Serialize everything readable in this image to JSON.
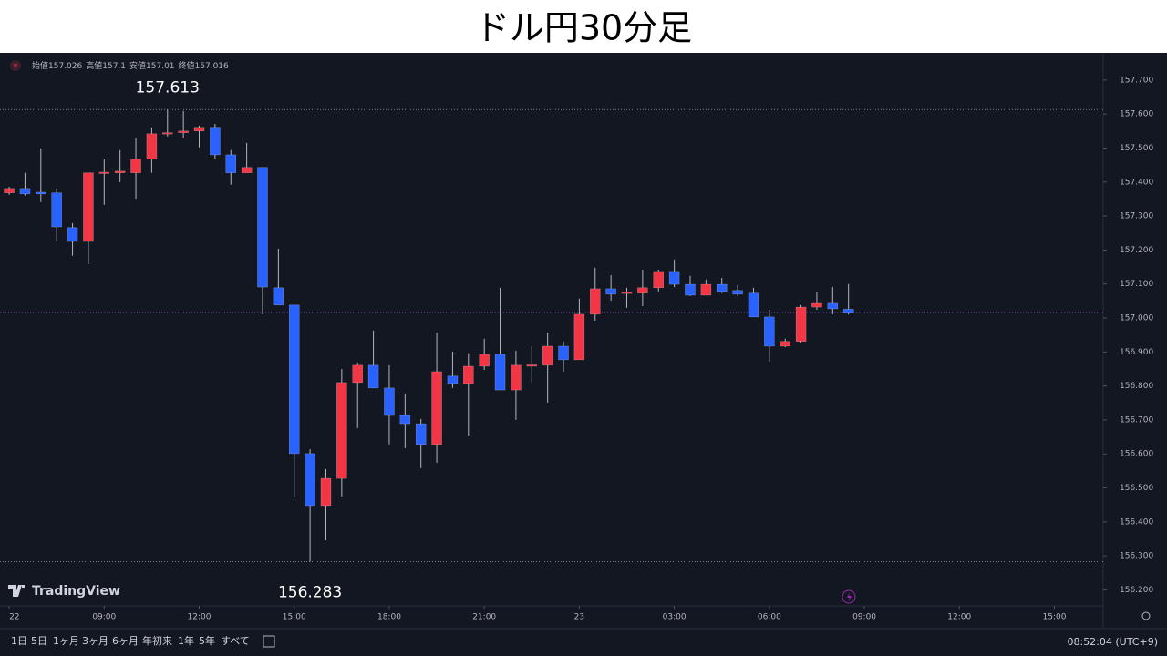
{
  "chart_data": {
    "type": "candlestick",
    "title": "ドル円30分足",
    "ohlc_names": [
      "始値",
      "高値",
      "安値",
      "終値"
    ],
    "open": [
      157.368,
      157.381,
      157.37,
      157.368,
      157.266,
      157.225,
      157.427,
      157.427,
      157.427,
      157.467,
      157.544,
      157.545,
      157.55,
      157.561,
      157.48,
      157.427,
      157.443,
      157.089,
      157.038,
      156.601,
      156.448,
      156.528,
      156.81,
      156.861,
      156.794,
      156.713,
      156.689,
      156.628,
      156.829,
      156.807,
      156.858,
      156.893,
      156.788,
      156.861,
      156.861,
      156.917,
      156.877,
      157.011,
      157.086,
      157.075,
      157.073,
      157.089,
      157.137,
      157.099,
      157.067,
      157.099,
      157.081,
      157.073,
      157.003,
      156.917,
      156.931,
      157.032,
      157.043,
      157.026
    ],
    "high": [
      157.386,
      157.427,
      157.499,
      157.381,
      157.279,
      157.427,
      157.467,
      157.494,
      157.528,
      157.561,
      157.613,
      157.609,
      157.566,
      157.571,
      157.494,
      157.515,
      157.443,
      157.204,
      157.038,
      156.614,
      156.555,
      156.85,
      156.869,
      156.963,
      156.861,
      156.778,
      156.703,
      156.957,
      156.901,
      156.896,
      156.939,
      157.089,
      156.904,
      156.917,
      156.957,
      156.931,
      157.057,
      157.148,
      157.126,
      157.089,
      157.142,
      157.142,
      157.172,
      157.124,
      157.113,
      157.118,
      157.097,
      157.089,
      157.024,
      156.939,
      157.038,
      157.078,
      157.091,
      157.1
    ],
    "low": [
      157.362,
      157.36,
      157.341,
      157.225,
      157.183,
      157.158,
      157.333,
      157.4,
      157.351,
      157.427,
      157.534,
      157.528,
      157.502,
      157.467,
      157.392,
      157.427,
      157.011,
      157.038,
      156.472,
      156.283,
      156.346,
      156.475,
      156.676,
      156.794,
      156.628,
      156.617,
      156.558,
      156.574,
      156.794,
      156.654,
      156.847,
      156.788,
      156.7,
      156.81,
      156.751,
      156.842,
      156.877,
      156.992,
      157.051,
      157.03,
      157.035,
      157.078,
      157.091,
      157.065,
      157.067,
      157.073,
      157.065,
      157.003,
      156.872,
      156.914,
      156.928,
      157.024,
      157.011,
      157.01
    ],
    "close": [
      157.381,
      157.365,
      157.365,
      157.268,
      157.225,
      157.427,
      157.429,
      157.432,
      157.467,
      157.542,
      157.545,
      157.55,
      157.561,
      157.48,
      157.427,
      157.443,
      157.091,
      157.038,
      156.601,
      156.448,
      156.528,
      156.81,
      156.861,
      156.794,
      156.713,
      156.689,
      156.628,
      156.842,
      156.807,
      156.858,
      156.893,
      156.788,
      156.861,
      156.862,
      156.917,
      156.877,
      157.011,
      157.086,
      157.07,
      157.076,
      157.089,
      157.137,
      157.099,
      157.067,
      157.099,
      157.078,
      157.07,
      157.003,
      156.917,
      156.931,
      157.032,
      157.043,
      157.027,
      157.016
    ],
    "up_color": "#f23645",
    "down_color": "#2962ff",
    "ylim": [
      156.153,
      157.78
    ],
    "yticks": [
      {
        "value": 157.7,
        "label": "157.700"
      },
      {
        "value": 157.6,
        "label": "157.600"
      },
      {
        "value": 157.5,
        "label": "157.500"
      },
      {
        "value": 157.4,
        "label": "157.400"
      },
      {
        "value": 157.3,
        "label": "157.300"
      },
      {
        "value": 157.2,
        "label": "157.200"
      },
      {
        "value": 157.1,
        "label": "157.100"
      },
      {
        "value": 157.0,
        "label": "157.000"
      },
      {
        "value": 156.9,
        "label": "156.900"
      },
      {
        "value": 156.8,
        "label": "156.800"
      },
      {
        "value": 156.7,
        "label": "156.700"
      },
      {
        "value": 156.6,
        "label": "156.600"
      },
      {
        "value": 156.5,
        "label": "156.500"
      },
      {
        "value": 156.4,
        "label": "156.400"
      },
      {
        "value": 156.3,
        "label": "156.300"
      },
      {
        "value": 156.2,
        "label": "156.200"
      }
    ],
    "xlim": [
      -0.58,
      69.08
    ],
    "xticks": [
      {
        "value": 0,
        "label": "22"
      },
      {
        "value": 6,
        "label": "09:00"
      },
      {
        "value": 12,
        "label": "12:00"
      },
      {
        "value": 18,
        "label": "15:00"
      },
      {
        "value": 24,
        "label": "18:00"
      },
      {
        "value": 30,
        "label": "21:00"
      },
      {
        "value": 36,
        "label": "23"
      },
      {
        "value": 42,
        "label": "03:00"
      },
      {
        "value": 48,
        "label": "06:00"
      },
      {
        "value": 54,
        "label": "09:00"
      },
      {
        "value": 60,
        "label": "12:00"
      },
      {
        "value": 66,
        "label": "15:00"
      }
    ],
    "brand": "TradingView",
    "periods": [
      "1日",
      "5日",
      "1ヶ月",
      "3ヶ月",
      "6ヶ月",
      "年初来",
      "1年",
      "5年",
      "すべて"
    ],
    "clock": "08:52:04 (UTC+9)"
  }
}
